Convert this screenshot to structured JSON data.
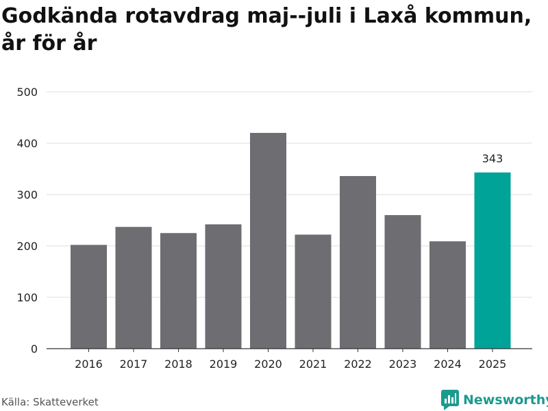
{
  "title": "Godkända rotavdrag maj--juli i Laxå kommun, år för år",
  "source": "Källa: Skatteverket",
  "brand": {
    "name": "Newsworthy",
    "icon": "newsworthy-logo-icon",
    "color": "#1c9a8e"
  },
  "colors": {
    "bar": "#6d6d72",
    "highlight": "#00a398",
    "grid": "#dddddd",
    "axis": "#333333"
  },
  "chart_data": {
    "type": "bar",
    "title": "Godkända rotavdrag maj--juli i Laxå kommun, år för år",
    "categories": [
      "2016",
      "2017",
      "2018",
      "2019",
      "2020",
      "2021",
      "2022",
      "2023",
      "2024",
      "2025"
    ],
    "values": [
      202,
      237,
      225,
      242,
      420,
      222,
      336,
      260,
      209,
      343
    ],
    "highlight_index": 9,
    "data_labels": [
      {
        "index": 9,
        "text": "343"
      }
    ],
    "xlabel": "",
    "ylabel": "",
    "ylim": [
      0,
      500
    ],
    "yticks": [
      "0",
      "100",
      "200",
      "300",
      "400",
      "500"
    ],
    "grid": true
  }
}
